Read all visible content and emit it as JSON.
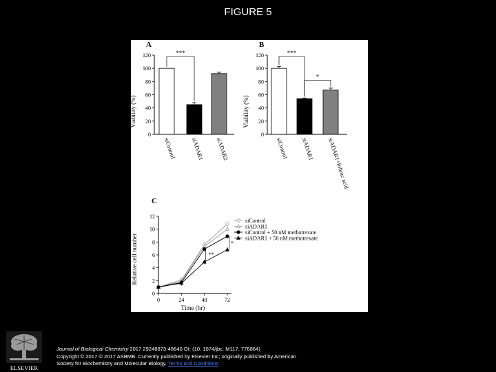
{
  "slide": {
    "title": "FIGURE 5"
  },
  "chart_data": [
    {
      "panel": "A",
      "type": "bar",
      "ylabel": "Viability (%)",
      "ylim": [
        0,
        120
      ],
      "yticks": [
        0,
        20,
        40,
        60,
        80,
        100,
        120
      ],
      "categories": [
        "siControl",
        "siADAR1",
        "siADAR2"
      ],
      "values": [
        100,
        45,
        92
      ],
      "errors": [
        0,
        3,
        2
      ],
      "bar_colors": [
        "#ffffff",
        "#000000",
        "#808080"
      ],
      "annotations": [
        {
          "text": "***",
          "between": [
            0,
            1
          ]
        }
      ]
    },
    {
      "panel": "B",
      "type": "bar",
      "ylabel": "Viability (%)",
      "ylim": [
        0,
        120
      ],
      "yticks": [
        0,
        20,
        40,
        60,
        80,
        100,
        120
      ],
      "categories": [
        "siControl",
        "siADAR1",
        "siADAR1+folinic acid"
      ],
      "values": [
        100,
        54,
        67
      ],
      "errors": [
        3,
        1,
        3
      ],
      "bar_colors": [
        "#ffffff",
        "#000000",
        "#808080"
      ],
      "annotations": [
        {
          "text": "***",
          "between": [
            0,
            1
          ]
        },
        {
          "text": "*",
          "between": [
            1,
            2
          ]
        }
      ]
    },
    {
      "panel": "C",
      "type": "line",
      "xlabel": "Time (hr)",
      "ylabel": "Relative cell number",
      "xlim": [
        0,
        72
      ],
      "ylim": [
        0,
        12
      ],
      "xticks": [
        0,
        24,
        48,
        72
      ],
      "yticks": [
        0,
        2,
        4,
        6,
        8,
        10,
        12
      ],
      "legend": "top-right",
      "x": [
        0,
        24,
        48,
        72
      ],
      "series": [
        {
          "name": "siControl",
          "values": [
            1,
            2.1,
            7.6,
            10.8
          ],
          "marker": "circle-open",
          "color": "#9a9a9a"
        },
        {
          "name": "siADAR1",
          "values": [
            1,
            1.9,
            7.3,
            10.0
          ],
          "marker": "triangle-open",
          "color": "#9a9a9a"
        },
        {
          "name": "siControl + 50 nM methotrexate",
          "values": [
            1,
            1.7,
            6.9,
            8.9
          ],
          "marker": "circle-filled",
          "color": "#000000"
        },
        {
          "name": "siADAR1 + 50 nM methotrexate",
          "values": [
            1,
            1.6,
            4.9,
            6.8
          ],
          "marker": "triangle-filled",
          "color": "#000000"
        }
      ],
      "annotations": [
        {
          "text": "**",
          "x": 48
        },
        {
          "text": "*",
          "x": 72
        }
      ]
    }
  ],
  "footer": {
    "journal": "Journal of Biological Chemistry",
    "citation": " 2017 29248873-48640 OI: (10. 1074/jbc. M117. 776864)",
    "copyright": "Copyright © 2017 © 2017 ASBMB. Currently published by Elsevier Inc; originally published by American",
    "society": "Society for Biochemistry and Molecular Biology.",
    "link_text": "Terms and Conditions"
  },
  "logo": {
    "icon": "elsevier-tree-icon",
    "text": "ELSEVIER"
  }
}
